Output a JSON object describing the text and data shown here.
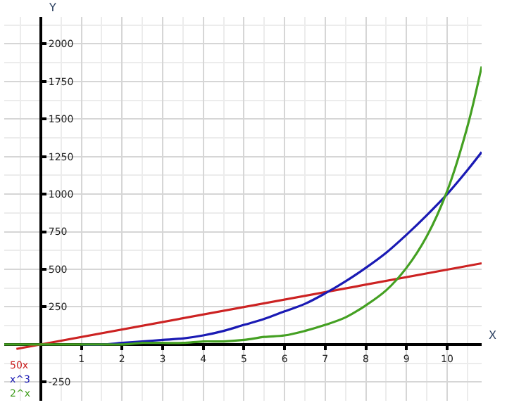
{
  "chart_data": {
    "type": "line",
    "xlabel": "X",
    "ylabel": "Y",
    "xlim": [
      -0.9,
      10.85
    ],
    "ylim": [
      -375,
      2180
    ],
    "xticks": [
      1,
      2,
      3,
      4,
      5,
      6,
      7,
      8,
      9,
      10
    ],
    "yticks": [
      -250,
      250,
      500,
      750,
      1000,
      1250,
      1500,
      1750,
      2000
    ],
    "grid": true,
    "series": [
      {
        "name": "50x",
        "color": "#cc2222",
        "x": [
          -0.6,
          10.85
        ],
        "values": [
          -30,
          540
        ]
      },
      {
        "name": "x^3",
        "color": "#1a1ab4",
        "x": [
          1,
          1.5,
          2,
          2.5,
          3,
          3.5,
          4,
          4.5,
          5,
          5.5,
          6,
          6.5,
          7,
          7.5,
          8,
          8.5,
          9,
          9.5,
          10,
          10.5,
          10.85
        ],
        "values": [
          0,
          0,
          10,
          20,
          30,
          40,
          60,
          90,
          130,
          170,
          220,
          270,
          340,
          420,
          510,
          610,
          730,
          860,
          1000,
          1160,
          1280
        ]
      },
      {
        "name": "2^x",
        "color": "#44a022",
        "x": [
          -0.9,
          0,
          0.5,
          1,
          1.5,
          2,
          2.5,
          3,
          3.5,
          4,
          4.5,
          5,
          5.5,
          6,
          6.5,
          7,
          7.5,
          8,
          8.5,
          9,
          9.5,
          10,
          10.5,
          10.85
        ],
        "values": [
          0,
          0,
          0,
          0,
          0,
          0,
          10,
          10,
          10,
          20,
          20,
          30,
          50,
          60,
          90,
          130,
          180,
          260,
          360,
          510,
          720,
          1020,
          1450,
          1850
        ]
      }
    ]
  }
}
